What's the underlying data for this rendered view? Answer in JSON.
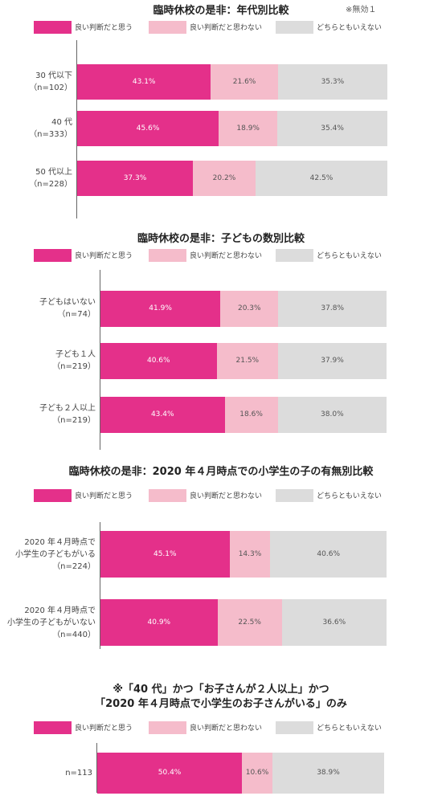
{
  "note": "※無効１",
  "colors": {
    "good": "#e4308a",
    "not_good": "#f5bccb",
    "neither": "#dcdcdc"
  },
  "legend": [
    "良い判断だと思う",
    "良い判断だと思わない",
    "どちらともいえない"
  ],
  "chart_data": [
    {
      "type": "bar",
      "stacked": true,
      "orientation": "horizontal",
      "title": "臨時休校の是非：年代別比較",
      "categories": [
        [
          "30 代以下",
          "（n=102）"
        ],
        [
          "40 代",
          "（n=333）"
        ],
        [
          "50 代以上",
          "（n=228）"
        ]
      ],
      "series": [
        {
          "name": "良い判断だと思う",
          "values": [
            43.1,
            45.6,
            37.3
          ],
          "labels": [
            "43.1%",
            "45.6%",
            "37.3%"
          ]
        },
        {
          "name": "良い判断だと思わない",
          "values": [
            21.6,
            18.9,
            20.2
          ],
          "labels": [
            "21.6%",
            "18.9%",
            "20.2%"
          ]
        },
        {
          "name": "どちらともいえない",
          "values": [
            35.3,
            35.4,
            42.5
          ],
          "labels": [
            "35.3%",
            "35.4%",
            "42.5%"
          ]
        }
      ]
    },
    {
      "type": "bar",
      "stacked": true,
      "orientation": "horizontal",
      "title": "臨時休校の是非：子どもの数別比較",
      "categories": [
        [
          "子どもはいない",
          "（n=74）"
        ],
        [
          "子ども１人",
          "（n=219）"
        ],
        [
          "子ども２人以上",
          "（n=219）"
        ]
      ],
      "series": [
        {
          "name": "良い判断だと思う",
          "values": [
            41.9,
            40.6,
            43.4
          ],
          "labels": [
            "41.9%",
            "40.6%",
            "43.4%"
          ]
        },
        {
          "name": "良い判断だと思わない",
          "values": [
            20.3,
            21.5,
            18.6
          ],
          "labels": [
            "20.3%",
            "21.5%",
            "18.6%"
          ]
        },
        {
          "name": "どちらともいえない",
          "values": [
            37.8,
            37.9,
            38.0
          ],
          "labels": [
            "37.8%",
            "37.9%",
            "38.0%"
          ]
        }
      ]
    },
    {
      "type": "bar",
      "stacked": true,
      "orientation": "horizontal",
      "title": "臨時休校の是非：2020 年４月時点での小学生の子の有無別比較",
      "categories": [
        [
          "2020 年４月時点で",
          "小学生の子どもがいる",
          "（n=224）"
        ],
        [
          "2020 年４月時点で",
          "小学生の子どもがいない",
          "（n=440）"
        ]
      ],
      "series": [
        {
          "name": "良い判断だと思う",
          "values": [
            45.1,
            40.9
          ],
          "labels": [
            "45.1%",
            "40.9%"
          ]
        },
        {
          "name": "良い判断だと思わない",
          "values": [
            14.3,
            22.5
          ],
          "labels": [
            "14.3%",
            "22.5%"
          ]
        },
        {
          "name": "どちらともいえない",
          "values": [
            40.6,
            36.6
          ],
          "labels": [
            "40.6%",
            "36.6%"
          ]
        }
      ]
    },
    {
      "type": "bar",
      "stacked": true,
      "orientation": "horizontal",
      "title": [
        "※「40 代」かつ「お子さんが２人以上」かつ",
        "「2020 年４月時点で小学生のお子さんがいる」のみ"
      ],
      "categories": [
        [
          "n=113"
        ]
      ],
      "series": [
        {
          "name": "良い判断だと思う",
          "values": [
            50.4
          ],
          "labels": [
            "50.4%"
          ]
        },
        {
          "name": "良い判断だと思わない",
          "values": [
            10.6
          ],
          "labels": [
            "10.6%"
          ]
        },
        {
          "name": "どちらともいえない",
          "values": [
            38.9
          ],
          "labels": [
            "38.9%"
          ]
        }
      ]
    }
  ]
}
